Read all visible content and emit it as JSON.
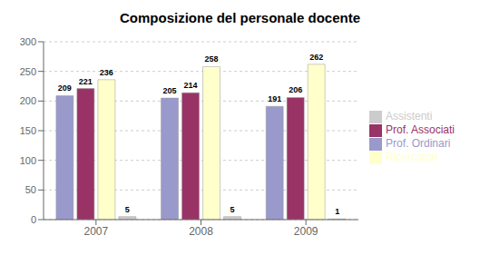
{
  "chart_data": {
    "type": "bar",
    "title": "Composizione del personale docente",
    "categories": [
      "2007",
      "2008",
      "2009"
    ],
    "series": [
      {
        "name": "Prof. Ordinari",
        "color": "#9999CC",
        "values": [
          209,
          205,
          191
        ]
      },
      {
        "name": "Prof. Associati",
        "color": "#993366",
        "values": [
          221,
          214,
          206
        ]
      },
      {
        "name": "Ricercatori",
        "color": "#FFFFCC",
        "values": [
          236,
          258,
          262
        ]
      },
      {
        "name": "Assistenti",
        "color": "#CCCCCC",
        "values": [
          5,
          5,
          1
        ]
      }
    ],
    "ylim": [
      0,
      300
    ],
    "yticks": [
      0,
      50,
      100,
      150,
      200,
      250,
      300
    ],
    "grid": true,
    "legend": "right",
    "data_labels": true
  }
}
